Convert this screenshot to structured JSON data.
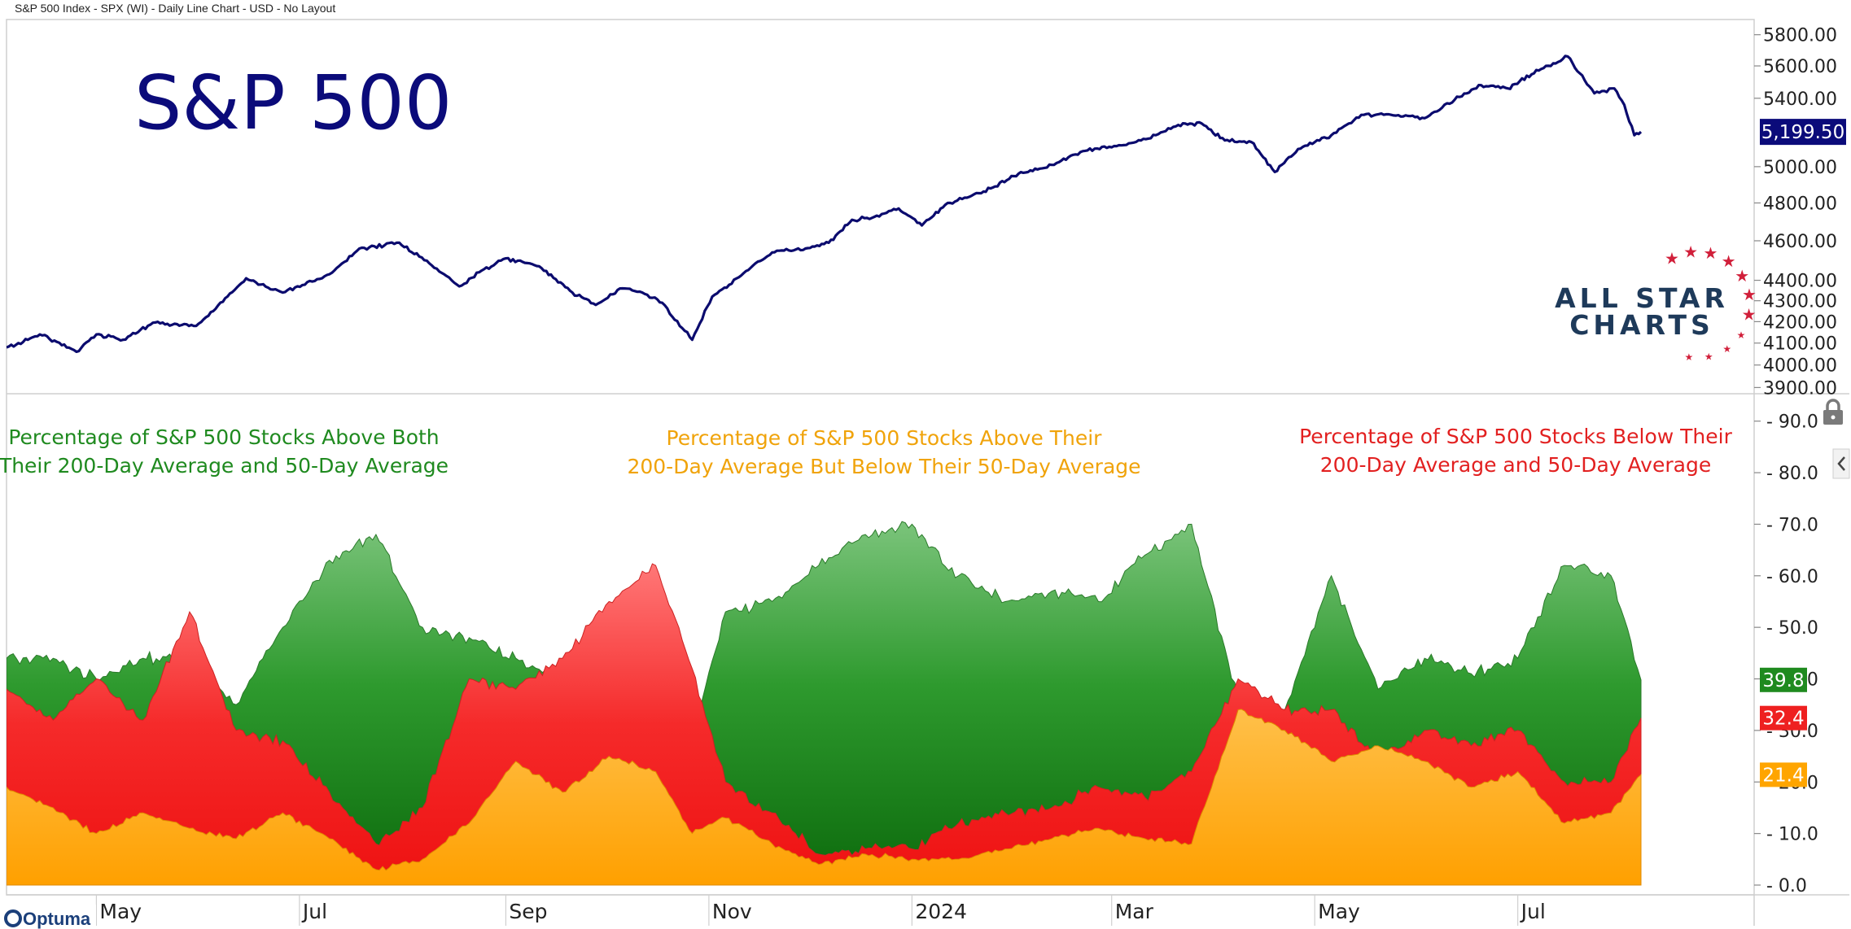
{
  "header": {
    "title": "S&P 500 Index - SPX (WI) - Daily Line Chart - USD - No Layout"
  },
  "branding": {
    "logo_line1": "ALL STAR",
    "logo_line2": "CHARTS",
    "vendor": "Optuma"
  },
  "colors": {
    "price_line": "#0b0b6e",
    "above_both": "#1f8a1f",
    "above_200_below_50": "#ffa500",
    "below_both": "#ee2020",
    "grid": "#e6e6e6",
    "badge_price": "#0b0b7a"
  },
  "chart_data": [
    {
      "type": "line",
      "title": "S&P 500",
      "last_value_label": "5,199.50",
      "y_tick_labels": [
        "3900.00",
        "4000.00",
        "4100.00",
        "4200.00",
        "4300.00",
        "4400.00",
        "4600.00",
        "4800.00",
        "5000.00",
        "5400.00",
        "5600.00",
        "5800.00"
      ],
      "y_ticks": [
        3900,
        4000,
        4100,
        4200,
        4300,
        4400,
        4600,
        4800,
        5000,
        5400,
        5600,
        5800
      ],
      "ylim": [
        3880,
        5900
      ],
      "y_scale": "log",
      "x_tick_labels": [
        "May",
        "Jul",
        "Sep",
        "Nov",
        "2024",
        "Mar",
        "May",
        "Jul"
      ],
      "x_ticks": [
        "2023-05-01",
        "2023-07-01",
        "2023-09-01",
        "2023-11-01",
        "2024-01-01",
        "2024-03-01",
        "2024-05-01",
        "2024-07-01"
      ],
      "xlim": [
        "2023-04-04",
        "2024-09-10"
      ],
      "series": [
        {
          "values_x": [
            "2023-04-04",
            "2023-04-14",
            "2023-04-25",
            "2023-05-01",
            "2023-05-09",
            "2023-05-18",
            "2023-05-31",
            "2023-06-08",
            "2023-06-15",
            "2023-06-26",
            "2023-07-10",
            "2023-07-19",
            "2023-07-31",
            "2023-08-09",
            "2023-08-18",
            "2023-08-24",
            "2023-09-01",
            "2023-09-11",
            "2023-09-21",
            "2023-09-28",
            "2023-10-06",
            "2023-10-12",
            "2023-10-18",
            "2023-10-27",
            "2023-11-02",
            "2023-11-10",
            "2023-11-20",
            "2023-11-30",
            "2023-12-07",
            "2023-12-14",
            "2023-12-20",
            "2023-12-28",
            "2024-01-04",
            "2024-01-11",
            "2024-01-19",
            "2024-01-26",
            "2024-02-02",
            "2024-02-12",
            "2024-02-22",
            "2024-03-01",
            "2024-03-12",
            "2024-03-21",
            "2024-03-28",
            "2024-04-04",
            "2024-04-12",
            "2024-04-19",
            "2024-04-26",
            "2024-05-06",
            "2024-05-15",
            "2024-05-24",
            "2024-06-03",
            "2024-06-12",
            "2024-06-20",
            "2024-06-28",
            "2024-07-08",
            "2024-07-16",
            "2024-07-24",
            "2024-07-30",
            "2024-08-02",
            "2024-08-05",
            "2024-08-07"
          ],
          "values": [
            4080,
            4140,
            4060,
            4140,
            4115,
            4195,
            4180,
            4295,
            4410,
            4340,
            4430,
            4560,
            4590,
            4485,
            4370,
            4440,
            4510,
            4470,
            4340,
            4280,
            4360,
            4340,
            4290,
            4115,
            4320,
            4415,
            4540,
            4560,
            4590,
            4710,
            4720,
            4770,
            4680,
            4790,
            4840,
            4890,
            4960,
            5010,
            5090,
            5110,
            5160,
            5240,
            5250,
            5150,
            5140,
            4970,
            5100,
            5180,
            5300,
            5300,
            5280,
            5390,
            5480,
            5460,
            5580,
            5660,
            5430,
            5460,
            5360,
            5180,
            5199.5
          ]
        }
      ]
    },
    {
      "type": "area",
      "x_tick_labels": [
        "May",
        "Jul",
        "Sep",
        "Nov",
        "2024",
        "Mar",
        "May",
        "Jul"
      ],
      "y_tick_labels": [
        "0.0",
        "10.0",
        "20.0",
        "30.0",
        "40.0",
        "50.0",
        "60.0",
        "70.0",
        "80.0",
        "90.0"
      ],
      "ylim": [
        0,
        95
      ],
      "annotations": {
        "above_both_line1": "Percentage of S&P 500 Stocks Above Both",
        "above_both_line2": "Their 200-Day Average and 50-Day Average",
        "above_200_below_50_line1": "Percentage of S&P 500 Stocks Above Their",
        "above_200_below_50_line2": "200-Day Average But Below Their 50-Day Average",
        "below_both_line1": "Percentage of S&P 500 Stocks Below Their",
        "below_both_line2": "200-Day Average and 50-Day Average"
      },
      "last_values": {
        "above_both": "39.8",
        "below_both": "32.4",
        "above_200_below_50": "21.4"
      },
      "x": [
        "2023-04-04",
        "2023-04-18",
        "2023-05-01",
        "2023-05-15",
        "2023-05-29",
        "2023-06-12",
        "2023-06-26",
        "2023-07-10",
        "2023-07-24",
        "2023-08-07",
        "2023-08-21",
        "2023-09-04",
        "2023-09-18",
        "2023-10-02",
        "2023-10-16",
        "2023-10-27",
        "2023-11-06",
        "2023-11-20",
        "2023-12-04",
        "2023-12-18",
        "2024-01-01",
        "2024-01-15",
        "2024-01-29",
        "2024-02-12",
        "2024-02-26",
        "2024-03-11",
        "2024-03-25",
        "2024-04-08",
        "2024-04-22",
        "2024-05-06",
        "2024-05-20",
        "2024-06-03",
        "2024-06-17",
        "2024-07-01",
        "2024-07-15",
        "2024-07-29",
        "2024-08-07"
      ],
      "series": [
        {
          "name": "orange",
          "values": [
            19,
            15,
            10,
            14,
            11,
            9,
            14,
            9,
            3,
            5,
            12,
            24,
            18,
            25,
            22,
            10,
            13,
            8,
            4,
            6,
            5,
            5,
            7,
            9,
            11,
            9,
            8,
            34,
            30,
            24,
            27,
            24,
            19,
            22,
            12,
            14,
            21.4
          ]
        },
        {
          "name": "red",
          "values": [
            38,
            32,
            40,
            32,
            53,
            30,
            28,
            18,
            8,
            15,
            40,
            38,
            44,
            55,
            62,
            42,
            20,
            14,
            6,
            7,
            7,
            12,
            14,
            15,
            19,
            17,
            22,
            40,
            34,
            34,
            24,
            30,
            27,
            30,
            20,
            20,
            32.4
          ]
        },
        {
          "name": "green",
          "values": [
            44,
            44,
            40,
            44,
            44,
            35,
            50,
            63,
            68,
            50,
            48,
            44,
            40,
            44,
            32,
            28,
            53,
            55,
            62,
            68,
            70,
            60,
            55,
            57,
            55,
            64,
            70,
            36,
            34,
            60,
            38,
            44,
            41,
            44,
            62,
            60,
            39.8
          ]
        }
      ]
    }
  ]
}
